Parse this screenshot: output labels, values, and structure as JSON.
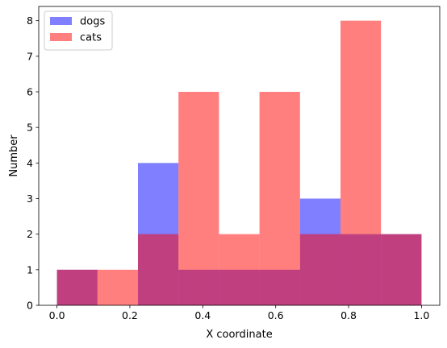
{
  "chart_data": {
    "type": "bar",
    "xlabel": "X coordinate",
    "ylabel": "Number",
    "xlim": [
      -0.05,
      1.05
    ],
    "ylim": [
      0,
      8.4
    ],
    "xticks": [
      0.0,
      0.2,
      0.4,
      0.6,
      0.8,
      1.0
    ],
    "xtick_labels": [
      "0.0",
      "0.2",
      "0.4",
      "0.6",
      "0.8",
      "1.0"
    ],
    "yticks": [
      0,
      1,
      2,
      3,
      4,
      5,
      6,
      7,
      8
    ],
    "ytick_labels": [
      "0",
      "1",
      "2",
      "3",
      "4",
      "5",
      "6",
      "7",
      "8"
    ],
    "bin_edges": [
      0.0,
      0.1111,
      0.2222,
      0.3333,
      0.4444,
      0.5556,
      0.6667,
      0.7778,
      0.8889,
      1.0
    ],
    "legend_position": "top-left",
    "grid": false,
    "series": [
      {
        "name": "dogs",
        "color": "#0000ff",
        "alpha": 0.5,
        "values": [
          1,
          0,
          4,
          1,
          1,
          1,
          3,
          2,
          2
        ]
      },
      {
        "name": "cats",
        "color": "#ff0000",
        "alpha": 0.5,
        "values": [
          1,
          1,
          2,
          6,
          2,
          6,
          2,
          8,
          2
        ]
      }
    ]
  }
}
